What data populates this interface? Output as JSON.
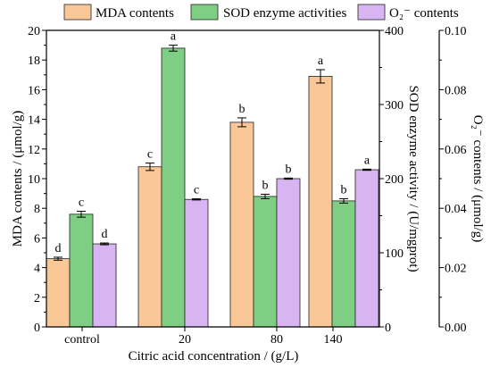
{
  "chart_data": {
    "type": "bar",
    "legend": "top",
    "grid": false,
    "categories": [
      "control",
      "20",
      "80",
      "140"
    ],
    "xlabel": "Citric acid concentration / (g/L)",
    "y_axes": [
      {
        "label": "MDA contents / (μmol/g)",
        "ylim": [
          0,
          20
        ],
        "ticks": [
          "0",
          "2",
          "4",
          "6",
          "8",
          "10",
          "12",
          "14",
          "16",
          "18",
          "20"
        ]
      },
      {
        "label": "SOD enzyme activity / (U/mgprot)",
        "ylim": [
          0,
          400
        ],
        "ticks": [
          "0",
          "100",
          "200",
          "300",
          "400"
        ]
      },
      {
        "label": "O₂⁻ contents / (μmol/g)",
        "ylim": [
          0,
          0.1
        ],
        "ticks": [
          "0.00",
          "0.02",
          "0.04",
          "0.06",
          "0.08",
          "0.10"
        ]
      }
    ],
    "series": [
      {
        "name": "MDA contents",
        "color": "#F9C896",
        "values": [
          4.6,
          10.8,
          13.8,
          16.9
        ],
        "errors": [
          0.1,
          0.25,
          0.3,
          0.45
        ],
        "letters": [
          "d",
          "c",
          "b",
          "a"
        ]
      },
      {
        "name": "SOD enzyme activities",
        "color": "#7ECF83",
        "values": [
          152,
          376,
          176,
          170
        ],
        "errors": [
          4,
          4,
          3,
          3
        ],
        "letters": [
          "c",
          "a",
          "b",
          "b"
        ]
      },
      {
        "name": "O₂⁻ contents",
        "color": "#D9B4F3",
        "values": [
          0.028,
          0.043,
          0.05,
          0.053
        ],
        "errors": [
          0.0003,
          0.0002,
          0.0002,
          0.0002
        ],
        "letters": [
          "d",
          "c",
          "b",
          "a"
        ]
      }
    ]
  }
}
